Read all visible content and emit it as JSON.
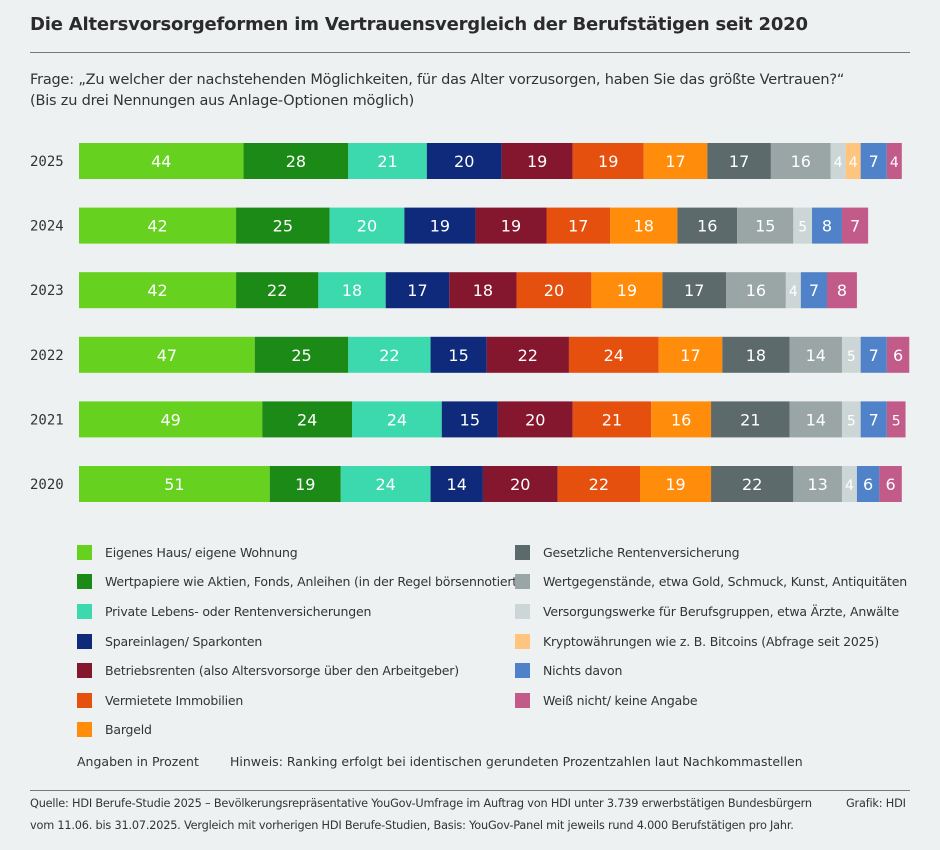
{
  "header": {
    "title": "Die Altersvorsorgeformen im Vertrauensvergleich der Berufstätigen seit 2020",
    "question": "Frage: „Zu welcher der nachstehenden Möglichkeiten, für das Alter vorzusorgen, haben Sie das größte Vertrauen?“",
    "question_note": "(Bis zu drei Nennungen aus Anlage-Optionen möglich)"
  },
  "chart_data": {
    "type": "bar",
    "orientation": "horizontal",
    "stacked": true,
    "unit": "Prozent",
    "categories": [
      "2025",
      "2024",
      "2023",
      "2022",
      "2021",
      "2020"
    ],
    "series": [
      {
        "name": "Eigenes Haus/ eigene Wohnung",
        "color": "#66d11e",
        "values": [
          44,
          42,
          42,
          47,
          49,
          51
        ]
      },
      {
        "name": "Wertpapiere wie Aktien, Fonds, Anleihen (in der Regel börsennotiert)",
        "color": "#1c8a16",
        "values": [
          28,
          25,
          22,
          25,
          24,
          19
        ]
      },
      {
        "name": "Private Lebens- oder Rentenversicherungen",
        "color": "#3cd9ae",
        "values": [
          21,
          20,
          18,
          22,
          24,
          24
        ]
      },
      {
        "name": "Spareinlagen/ Sparkonten",
        "color": "#0f2a7a",
        "values": [
          20,
          19,
          17,
          15,
          15,
          14
        ]
      },
      {
        "name": "Betriebsrenten (also Altersvorsorge über den Arbeitgeber)",
        "color": "#84162e",
        "values": [
          19,
          19,
          18,
          22,
          20,
          20
        ]
      },
      {
        "name": "Vermietete Immobilien",
        "color": "#e5500f",
        "values": [
          19,
          17,
          20,
          24,
          21,
          22
        ]
      },
      {
        "name": "Bargeld",
        "color": "#ff8c0a",
        "values": [
          17,
          18,
          19,
          17,
          16,
          19
        ]
      },
      {
        "name": "Gesetzliche Rentenversicherung",
        "color": "#5c6a6b",
        "values": [
          17,
          16,
          17,
          18,
          21,
          22
        ]
      },
      {
        "name": "Wertgegenstände, etwa Gold, Schmuck, Kunst, Antiquitäten",
        "color": "#9aa6a6",
        "values": [
          16,
          15,
          16,
          14,
          14,
          13
        ]
      },
      {
        "name": "Versorgungswerke für Berufsgruppen, etwa Ärzte, Anwälte",
        "color": "#cdd6d6",
        "values": [
          4,
          5,
          4,
          5,
          5,
          4
        ]
      },
      {
        "name": "Kryptowährungen wie z. B. Bitcoins (Abfrage seit 2025)",
        "color": "#ffc57e",
        "values": [
          4,
          null,
          null,
          null,
          null,
          null
        ]
      },
      {
        "name": "Nichts davon",
        "color": "#4f82c8",
        "values": [
          7,
          8,
          7,
          7,
          7,
          6
        ]
      },
      {
        "name": "Weiß nicht/ keine Angabe",
        "color": "#c25a8a",
        "values": [
          4,
          7,
          8,
          6,
          5,
          6
        ]
      }
    ],
    "legend": "bottom"
  },
  "notes": {
    "unit_note": "Angaben in Prozent",
    "hint": "Hinweis: Ranking erfolgt bei identischen gerundeten Prozentzahlen laut Nachkommastellen"
  },
  "footer": {
    "source_line1": "Quelle: HDI Berufe-Studie 2025 – Bevölkerungsrepräsentative YouGov-Umfrage im Auftrag von HDI unter 3.739 erwerbstätigen Bundesbürgern",
    "source_line2": "vom 11.06. bis 31.07.2025. Vergleich mit vorherigen HDI Berufe-Studien, Basis: YouGov-Panel mit jeweils rund 4.000 Berufstätigen pro Jahr.",
    "credit": "Grafik: HDI"
  }
}
